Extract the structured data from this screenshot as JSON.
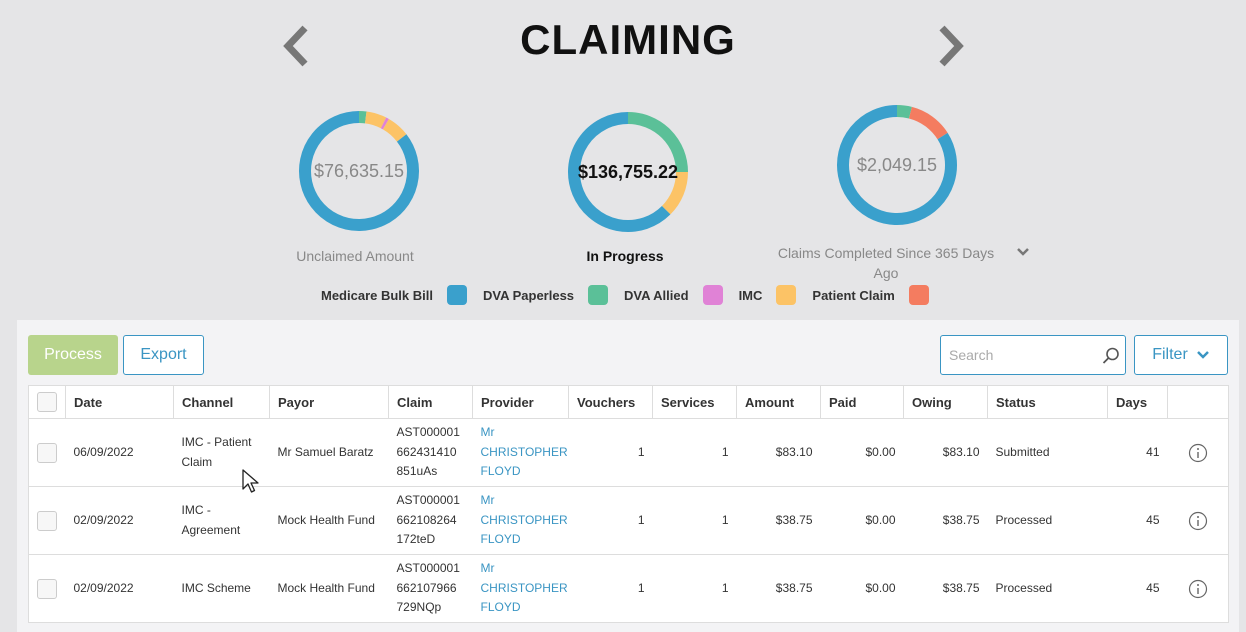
{
  "header": {
    "title": "CLAIMING"
  },
  "colors": {
    "medicare": "#3aa0cc",
    "dva_paperless": "#5bc098",
    "dva_allied": "#e082d6",
    "imc": "#fcc366",
    "patient_claim": "#f47c60",
    "accent": "#3a95c3"
  },
  "summary": {
    "unclaimed": {
      "value": "$76,635.15",
      "label": "Unclaimed Amount",
      "segments": [
        {
          "channel": "medicare",
          "fraction": 0.855
        },
        {
          "channel": "dva_paperless",
          "fraction": 0.02
        },
        {
          "channel": "imc",
          "fraction": 0.055
        },
        {
          "channel": "dva_allied",
          "fraction": 0.008
        },
        {
          "channel": "imc",
          "fraction": 0.062
        }
      ]
    },
    "in_progress": {
      "value": "$136,755.22",
      "label": "In Progress",
      "segments": [
        {
          "channel": "medicare",
          "fraction": 0.625
        },
        {
          "channel": "dva_paperless",
          "fraction": 0.25
        },
        {
          "channel": "imc",
          "fraction": 0.125
        }
      ]
    },
    "completed": {
      "value": "$2,049.15",
      "label": "Claims Completed Since 365 Days Ago",
      "segments": [
        {
          "channel": "medicare",
          "fraction": 0.84
        },
        {
          "channel": "dva_paperless",
          "fraction": 0.04
        },
        {
          "channel": "patient_claim",
          "fraction": 0.12
        }
      ]
    }
  },
  "legend": [
    {
      "label": "Medicare Bulk Bill",
      "channel": "medicare"
    },
    {
      "label": "DVA Paperless",
      "channel": "dva_paperless"
    },
    {
      "label": "DVA Allied",
      "channel": "dva_allied"
    },
    {
      "label": "IMC",
      "channel": "imc"
    },
    {
      "label": "Patient Claim",
      "channel": "patient_claim"
    }
  ],
  "toolbar": {
    "process_label": "Process",
    "export_label": "Export",
    "search_placeholder": "Search",
    "filter_label": "Filter"
  },
  "table": {
    "columns": [
      "Date",
      "Channel",
      "Payor",
      "Claim",
      "Provider",
      "Vouchers",
      "Services",
      "Amount",
      "Paid",
      "Owing",
      "Status",
      "Days"
    ],
    "rows": [
      {
        "date": "06/09/2022",
        "channel": "IMC - Patient Claim",
        "payor": "Mr Samuel Baratz",
        "claim": "AST000001 662431410 851uAs",
        "provider": "Mr CHRISTOPHER FLOYD",
        "vouchers": "1",
        "services": "1",
        "amount": "$83.10",
        "paid": "$0.00",
        "owing": "$83.10",
        "status": "Submitted",
        "days": "41"
      },
      {
        "date": "02/09/2022",
        "channel": "IMC - Agreement",
        "payor": "Mock Health Fund",
        "claim": "AST000001 662108264 172teD",
        "provider": "Mr CHRISTOPHER FLOYD",
        "vouchers": "1",
        "services": "1",
        "amount": "$38.75",
        "paid": "$0.00",
        "owing": "$38.75",
        "status": "Processed",
        "days": "45"
      },
      {
        "date": "02/09/2022",
        "channel": "IMC Scheme",
        "payor": "Mock Health Fund",
        "claim": "AST000001 662107966 729NQp",
        "provider": "Mr CHRISTOPHER FLOYD",
        "vouchers": "1",
        "services": "1",
        "amount": "$38.75",
        "paid": "$0.00",
        "owing": "$38.75",
        "status": "Processed",
        "days": "45"
      }
    ]
  }
}
